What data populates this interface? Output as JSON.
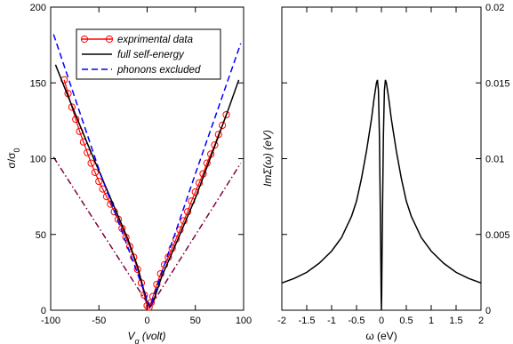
{
  "chart_data": [
    {
      "type": "line",
      "title": "",
      "xlabel_main": "V",
      "xlabel_sub": "g",
      "xlabel_rest": " (volt)",
      "ylabel_main": "σ/σ",
      "ylabel_sub": "0",
      "xlim": [
        -100,
        100
      ],
      "ylim": [
        0,
        200
      ],
      "xticks": [
        -100,
        -50,
        0,
        50,
        100
      ],
      "yticks": [
        0,
        50,
        100,
        150,
        200
      ],
      "legend_position": "top-left",
      "series": [
        {
          "name": "exprimental data",
          "color": "#ff0000",
          "style": "line-with-open-circles",
          "x": [
            -86,
            -82,
            -78,
            -74,
            -70,
            -66,
            -62,
            -58,
            -54,
            -50,
            -46,
            -42,
            -38,
            -34,
            -30,
            -26,
            -22,
            -18,
            -14,
            -10,
            -6,
            -3,
            0,
            2,
            4,
            6,
            10,
            14,
            18,
            22,
            26,
            30,
            34,
            38,
            42,
            46,
            50,
            54,
            58,
            62,
            66,
            70,
            74,
            78,
            82
          ],
          "y": [
            152,
            143,
            134,
            126,
            118,
            111,
            104,
            97,
            91,
            85,
            80,
            75,
            70,
            65,
            60,
            54,
            48,
            42,
            35,
            27,
            18,
            10,
            3,
            2,
            5,
            9,
            17,
            24,
            30,
            35,
            41,
            47,
            53,
            59,
            65,
            72,
            78,
            84,
            90,
            97,
            103,
            109,
            116,
            122,
            129
          ]
        },
        {
          "name": "full self-energy",
          "color": "#000000",
          "style": "solid",
          "x": [
            -95,
            -80,
            -60,
            -40,
            -20,
            -10,
            0,
            3,
            6,
            15,
            30,
            50,
            70,
            85,
            95
          ],
          "y": [
            162,
            138,
            107,
            77,
            47,
            29,
            5,
            2,
            5,
            22,
            44,
            74,
            108,
            134,
            152
          ]
        },
        {
          "name": "phonons excluded",
          "color": "#0000ff",
          "style": "dashed",
          "x": [
            -97,
            -50,
            3,
            50,
            97
          ],
          "y": [
            182,
            93,
            2,
            90,
            176
          ]
        },
        {
          "name": "",
          "color": "#800040",
          "style": "dash-dot",
          "x": [
            -97,
            3,
            97
          ],
          "y": [
            101,
            2,
            97
          ]
        }
      ]
    },
    {
      "type": "line",
      "title": "",
      "xlabel": "ω (eV)",
      "ylabel": "ImΣ(ω) (eV)",
      "xlim": [
        -2,
        2
      ],
      "ylim": [
        0,
        0.02
      ],
      "xticks": [
        -2,
        -1.5,
        -1,
        -0.5,
        0,
        0.5,
        1,
        1.5,
        2
      ],
      "xticklabels": [
        "-2",
        "-1.5",
        "-1",
        "-0.5",
        "0",
        "0.5",
        "1",
        "1.5",
        "2"
      ],
      "yticks": [
        0,
        0.005,
        0.01,
        0.015,
        0.02
      ],
      "yticklabels": [
        "0",
        "0.005",
        "0.01",
        "0.015",
        "0.02"
      ],
      "yaxis_side": "right",
      "series": [
        {
          "name": "",
          "color": "#000000",
          "style": "solid",
          "x": [
            -2,
            -1.75,
            -1.5,
            -1.25,
            -1,
            -0.8,
            -0.6,
            -0.5,
            -0.4,
            -0.3,
            -0.2,
            -0.15,
            -0.1,
            -0.08,
            -0.06,
            -0.04,
            -0.02,
            -0.005,
            0,
            0.005,
            0.02,
            0.04,
            0.06,
            0.08,
            0.1,
            0.15,
            0.2,
            0.3,
            0.4,
            0.5,
            0.6,
            0.8,
            1,
            1.25,
            1.5,
            1.75,
            2
          ],
          "y": [
            0.0018,
            0.0021,
            0.0025,
            0.0031,
            0.0039,
            0.0048,
            0.0062,
            0.0072,
            0.0087,
            0.0105,
            0.0126,
            0.0139,
            0.015,
            0.0152,
            0.0145,
            0.0115,
            0.006,
            0.001,
            0.0,
            0.001,
            0.006,
            0.0115,
            0.0145,
            0.0152,
            0.015,
            0.0139,
            0.0126,
            0.0105,
            0.0087,
            0.0072,
            0.0062,
            0.0048,
            0.0039,
            0.0031,
            0.0025,
            0.0021,
            0.0018
          ]
        }
      ]
    }
  ]
}
